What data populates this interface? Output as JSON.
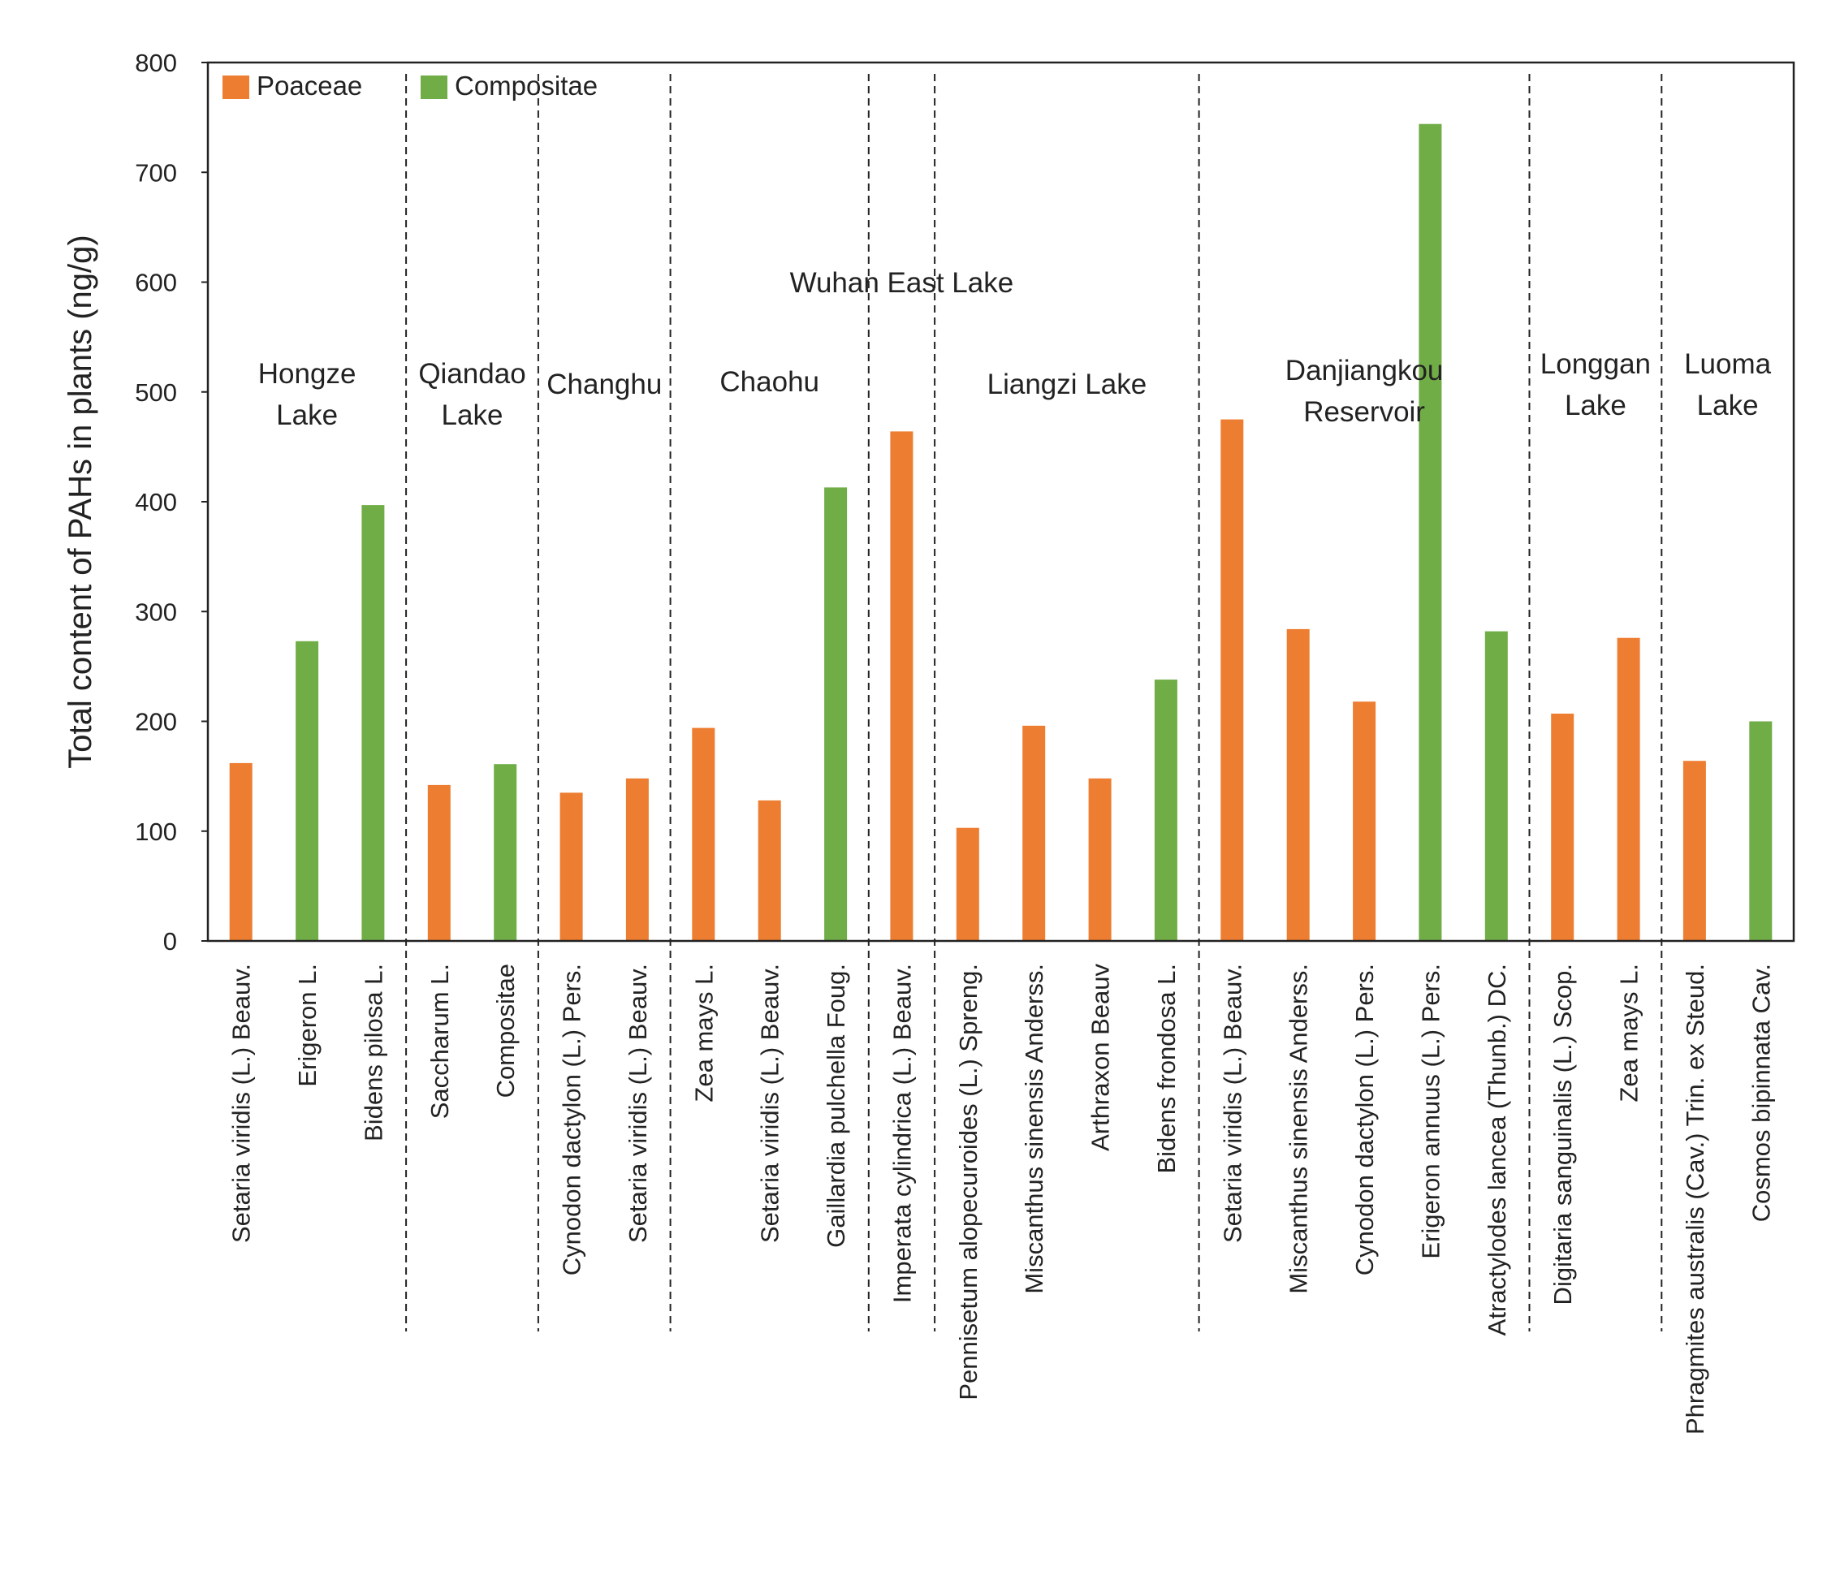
{
  "chart_data": {
    "type": "bar",
    "title": "",
    "xlabel": "",
    "ylabel": "Total content of PAHs in plants (ng/g)",
    "ylim": [
      0,
      800
    ],
    "yticks": [
      0,
      100,
      200,
      300,
      400,
      500,
      600,
      700,
      800
    ],
    "grid": false,
    "legend_position": "top-left",
    "legend": [
      {
        "name": "Poaceae",
        "color": "#ED7D31"
      },
      {
        "name": "Compositae",
        "color": "#70AD47"
      }
    ],
    "groups": [
      {
        "lines": [
          "Hongze",
          "Lake"
        ],
        "start": 0,
        "end": 2
      },
      {
        "lines": [
          "Qiandao",
          "Lake"
        ],
        "start": 3,
        "end": 4
      },
      {
        "lines": [
          "Changhu"
        ],
        "start": 5,
        "end": 6
      },
      {
        "lines": [
          "Chaohu"
        ],
        "start": 7,
        "end": 9
      },
      {
        "lines": [
          "Wuhan East Lake"
        ],
        "start": 10,
        "end": 10
      },
      {
        "lines": [
          "Liangzi Lake"
        ],
        "start": 11,
        "end": 14
      },
      {
        "lines": [
          "Danjiangkou",
          "Reservoir"
        ],
        "start": 15,
        "end": 19
      },
      {
        "lines": [
          "Longgan",
          "Lake"
        ],
        "start": 20,
        "end": 21
      },
      {
        "lines": [
          "Luoma",
          "Lake"
        ],
        "start": 22,
        "end": 23
      }
    ],
    "categories": [
      "Setaria viridis (L.) Beauv.",
      "Erigeron L.",
      "Bidens pilosa L.",
      "Saccharum L.",
      "Compositae",
      "Cynodon dactylon (L.) Pers.",
      "Setaria viridis (L.) Beauv.",
      "Zea mays L.",
      "Setaria viridis (L.) Beauv.",
      "Gaillardia pulchella Foug.",
      "Imperata cylindrica (L.) Beauv.",
      "Pennisetum alopecuroides (L.) Spreng.",
      "Miscanthus sinensis Anderss.",
      "Arthraxon Beauv",
      "Bidens frondosa L.",
      "Setaria viridis (L.) Beauv.",
      "Miscanthus sinensis Anderss.",
      "Cynodon dactylon (L.) Pers.",
      "Erigeron annuus (L.) Pers.",
      "Atractylodes lancea (Thunb.) DC.",
      "Digitaria sanguinalis (L.) Scop.",
      "Zea mays L.",
      "Phragmites australis (Cav.) Trin. ex Steud.",
      "Cosmos bipinnata Cav."
    ],
    "families": [
      "Poaceae",
      "Compositae",
      "Compositae",
      "Poaceae",
      "Compositae",
      "Poaceae",
      "Poaceae",
      "Poaceae",
      "Poaceae",
      "Compositae",
      "Poaceae",
      "Poaceae",
      "Poaceae",
      "Poaceae",
      "Compositae",
      "Poaceae",
      "Poaceae",
      "Poaceae",
      "Compositae",
      "Compositae",
      "Poaceae",
      "Poaceae",
      "Poaceae",
      "Compositae"
    ],
    "values": [
      162,
      273,
      397,
      142,
      161,
      135,
      148,
      194,
      128,
      413,
      464,
      103,
      196,
      148,
      238,
      475,
      284,
      218,
      744,
      282,
      207,
      276,
      164,
      200
    ]
  }
}
